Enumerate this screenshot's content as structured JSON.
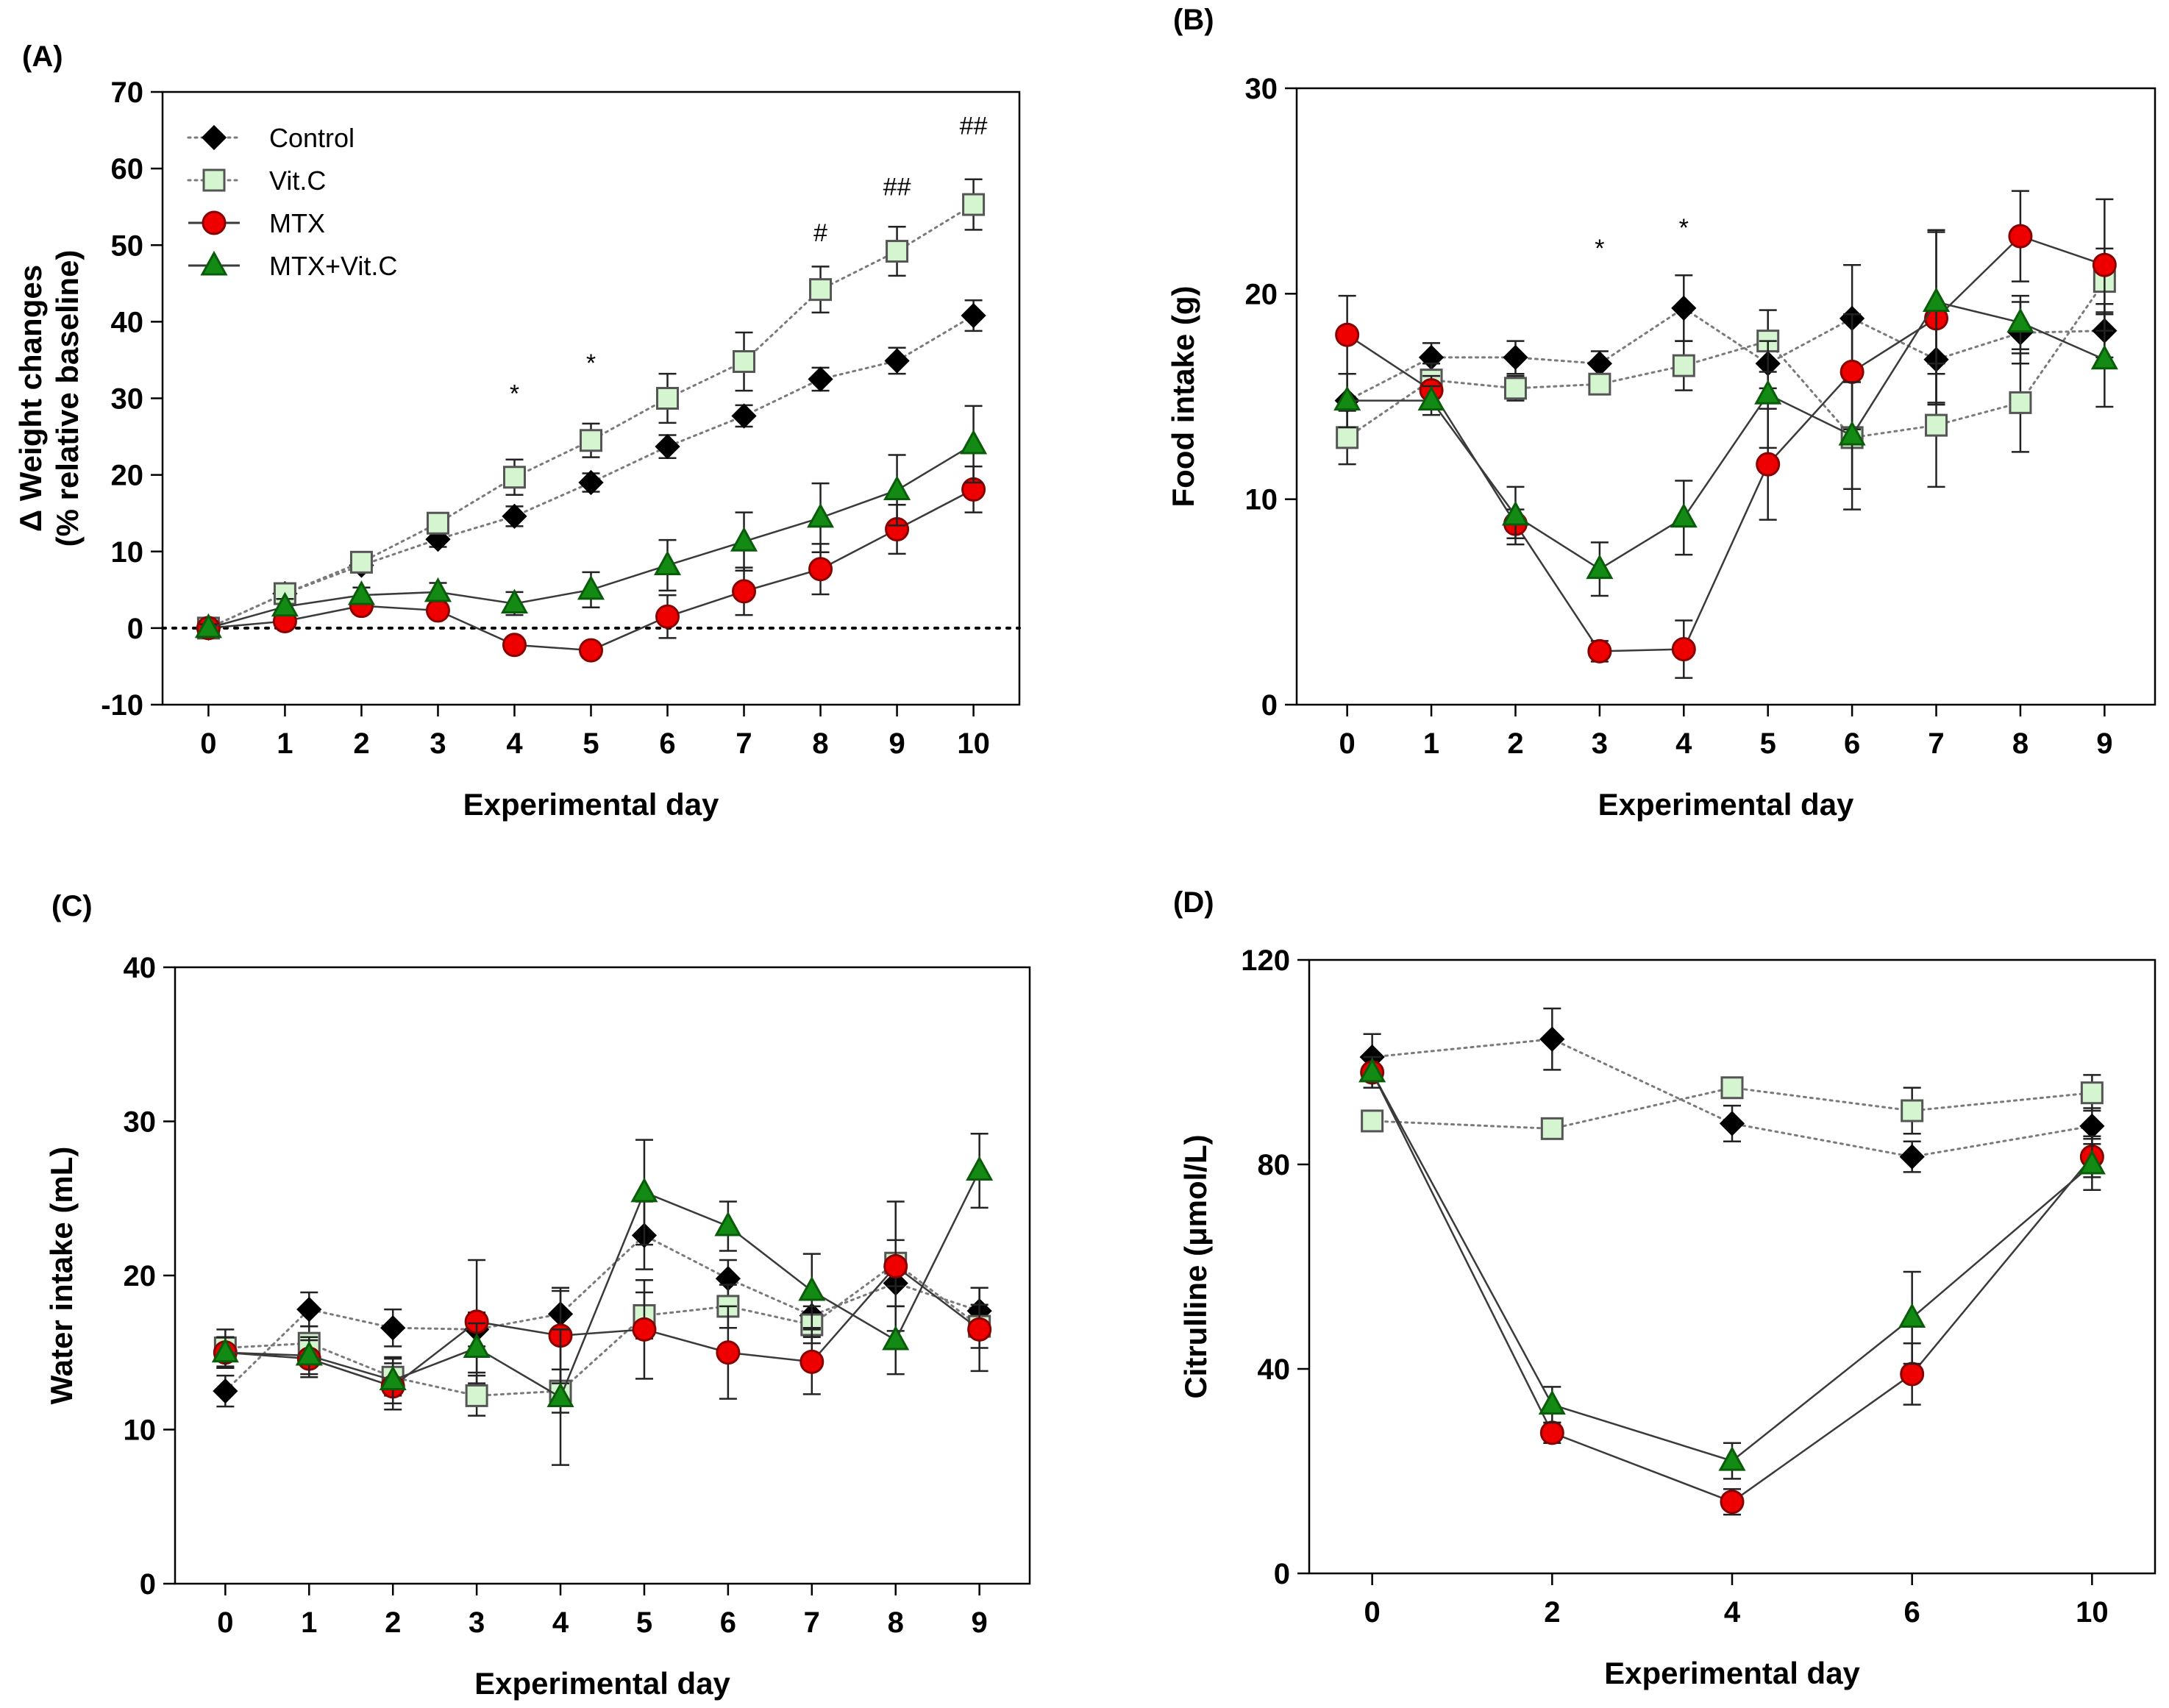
{
  "legend": {
    "entries": [
      {
        "name": "Control",
        "series": "control"
      },
      {
        "name": "Vit.C",
        "series": "vitc"
      },
      {
        "name": "MTX",
        "series": "mtx"
      },
      {
        "name": "MTX+Vit.C",
        "series": "mtxvitc"
      }
    ]
  },
  "styles": {
    "control": {
      "marker": "diamond",
      "fill": "#000000",
      "stroke": "#000000",
      "line": "dotted"
    },
    "vitc": {
      "marker": "square",
      "fill": "#d4f5d0",
      "stroke": "#555555",
      "line": "dotted"
    },
    "mtx": {
      "marker": "circle",
      "fill": "#ee0000",
      "stroke": "#880000",
      "line": "solid"
    },
    "mtxvitc": {
      "marker": "triangle",
      "fill": "#138a13",
      "stroke": "#0a5c0a",
      "line": "solid"
    }
  },
  "chart_data": [
    {
      "id": "A",
      "panel_label": "(A)",
      "type": "line",
      "xlabel": "Experimental day",
      "ylabel": [
        "Δ Weight changes",
        "(% relative baseline)"
      ],
      "xlim": [
        -0.6,
        10.6
      ],
      "ylim": [
        -10,
        70
      ],
      "yticks": [
        -10,
        0,
        10,
        20,
        30,
        40,
        50,
        60,
        70
      ],
      "ytick_labels": [
        "-10",
        "0",
        "10",
        "20",
        "30",
        "40",
        "50",
        "60",
        "70"
      ],
      "xticks": [
        0,
        1,
        2,
        3,
        4,
        5,
        6,
        7,
        8,
        9,
        10
      ],
      "xtick_labels": [
        "0",
        "1",
        "2",
        "3",
        "4",
        "5",
        "6",
        "7",
        "8",
        "9",
        "10"
      ],
      "baseline": 0,
      "show_legend": true,
      "series": [
        {
          "key": "control",
          "name": "Control",
          "x": [
            0,
            1,
            2,
            3,
            4,
            5,
            6,
            7,
            8,
            9,
            10
          ],
          "y": [
            0,
            4.5,
            8.2,
            11.6,
            14.6,
            19,
            23.7,
            27.7,
            32.5,
            34.9,
            40.8
          ],
          "err": [
            0.5,
            0.8,
            0.8,
            1,
            1.3,
            1.2,
            1.5,
            1.4,
            1.5,
            1.7,
            2
          ]
        },
        {
          "key": "vitc",
          "name": "Vit.C",
          "x": [
            0,
            1,
            2,
            3,
            4,
            5,
            6,
            7,
            8,
            9,
            10
          ],
          "y": [
            0,
            4.5,
            8.6,
            13.7,
            19.7,
            24.5,
            30,
            34.8,
            44.2,
            49.2,
            55.3
          ],
          "err": [
            0.5,
            1,
            1,
            1.2,
            2.3,
            2.2,
            3.2,
            3.8,
            3,
            3.2,
            3.3
          ]
        },
        {
          "key": "mtx",
          "name": "MTX",
          "x": [
            0,
            1,
            2,
            3,
            4,
            5,
            6,
            7,
            8,
            9,
            10
          ],
          "y": [
            0,
            0.9,
            2.9,
            2.3,
            -2.2,
            -2.9,
            1.5,
            4.8,
            7.7,
            12.9,
            18.1
          ],
          "err": [
            0.5,
            0.8,
            1,
            1,
            0.8,
            1,
            2.8,
            3.1,
            3.3,
            3.2,
            3
          ]
        },
        {
          "key": "mtxvitc",
          "name": "MTX+Vit.C",
          "x": [
            0,
            1,
            2,
            3,
            4,
            5,
            6,
            7,
            8,
            9,
            10
          ],
          "y": [
            0,
            2.8,
            4.3,
            4.7,
            3.2,
            5,
            8.2,
            11.3,
            14.4,
            18,
            24
          ],
          "err": [
            0.5,
            1,
            1,
            1.2,
            1.5,
            2.3,
            3.3,
            3.8,
            4.5,
            4.6,
            5
          ]
        }
      ],
      "annotations": [
        {
          "x": 4,
          "y": 29.5,
          "text": "*"
        },
        {
          "x": 5,
          "y": 33.5,
          "text": "*"
        },
        {
          "x": 8,
          "y": 50.5,
          "text": "#"
        },
        {
          "x": 9,
          "y": 56.5,
          "text": "##"
        },
        {
          "x": 10,
          "y": 64.5,
          "text": "##"
        }
      ]
    },
    {
      "id": "B",
      "panel_label": "(B)",
      "type": "line",
      "xlabel": "Experimental day",
      "ylabel": [
        "Food intake (g)"
      ],
      "xlim": [
        -0.6,
        9.6
      ],
      "ylim": [
        0,
        30
      ],
      "yticks": [
        0,
        10,
        20,
        30
      ],
      "ytick_labels": [
        "0",
        "10",
        "20",
        "30"
      ],
      "xticks": [
        0,
        1,
        2,
        3,
        4,
        5,
        6,
        7,
        8,
        9
      ],
      "xtick_labels": [
        "0",
        "1",
        "2",
        "3",
        "4",
        "5",
        "6",
        "7",
        "8",
        "9"
      ],
      "show_legend": false,
      "series": [
        {
          "key": "control",
          "name": "Control",
          "x": [
            0,
            1,
            2,
            3,
            4,
            5,
            6,
            7,
            8,
            9
          ],
          "y": [
            14.8,
            16.9,
            16.9,
            16.6,
            19.3,
            16.6,
            18.8,
            16.8,
            18.1,
            18.2
          ],
          "err": [
            1.3,
            0.7,
            0.8,
            0.6,
            1.6,
            1.2,
            2.6,
            2.1,
            1.5,
            1.3
          ]
        },
        {
          "key": "vitc",
          "name": "Vit.C",
          "x": [
            0,
            1,
            2,
            3,
            4,
            5,
            6,
            7,
            8,
            9
          ],
          "y": [
            13,
            15.8,
            15.4,
            15.6,
            16.5,
            17.7,
            13,
            13.6,
            14.7,
            20.6
          ],
          "err": [
            1.3,
            0.8,
            0.6,
            0.5,
            1.2,
            1.5,
            3.5,
            3,
            2.4,
            1.6
          ]
        },
        {
          "key": "mtx",
          "name": "MTX",
          "x": [
            0,
            1,
            2,
            3,
            4,
            5,
            6,
            7,
            8,
            9
          ],
          "y": [
            18,
            15.3,
            8.8,
            2.6,
            2.7,
            11.7,
            16.2,
            18.8,
            22.8,
            21.4
          ],
          "err": [
            1.9,
            0.7,
            0.7,
            0.5,
            1.4,
            2.7,
            2.8,
            4.2,
            2.2,
            3.2
          ]
        },
        {
          "key": "mtxvitc",
          "name": "MTX+Vit.C",
          "x": [
            0,
            1,
            2,
            3,
            4,
            5,
            6,
            7,
            8,
            9
          ],
          "y": [
            14.8,
            14.8,
            9.2,
            6.6,
            9.1,
            15.1,
            13.1,
            19.6,
            18.6,
            16.8
          ],
          "err": [
            1.3,
            0.7,
            1.4,
            1.3,
            1.8,
            2.6,
            2.6,
            3.5,
            1.3,
            2.3
          ]
        }
      ],
      "annotations": [
        {
          "x": 3,
          "y": 21.8,
          "text": "*"
        },
        {
          "x": 4,
          "y": 22.8,
          "text": "*"
        }
      ]
    },
    {
      "id": "C",
      "panel_label": "(C)",
      "type": "line",
      "xlabel": "Experimental day",
      "ylabel": [
        "Water intake (mL)"
      ],
      "xlim": [
        -0.6,
        9.6
      ],
      "ylim": [
        0,
        40
      ],
      "yticks": [
        0,
        10,
        20,
        30,
        40
      ],
      "ytick_labels": [
        "0",
        "10",
        "20",
        "30",
        "40"
      ],
      "xticks": [
        0,
        1,
        2,
        3,
        4,
        5,
        6,
        7,
        8,
        9
      ],
      "xtick_labels": [
        "0",
        "1",
        "2",
        "3",
        "4",
        "5",
        "6",
        "7",
        "8",
        "9"
      ],
      "show_legend": false,
      "series": [
        {
          "key": "control",
          "name": "Control",
          "x": [
            0,
            1,
            2,
            3,
            4,
            5,
            6,
            7,
            8,
            9
          ],
          "y": [
            12.5,
            17.8,
            16.6,
            16.5,
            17.5,
            22.6,
            19.8,
            17.4,
            19.5,
            17.7
          ],
          "err": [
            1,
            1.1,
            1.2,
            1.1,
            1.5,
            2.2,
            1.2,
            1.4,
            1.5,
            1.5
          ]
        },
        {
          "key": "vitc",
          "name": "Vit.C",
          "x": [
            0,
            1,
            2,
            3,
            4,
            5,
            6,
            7,
            8,
            9
          ],
          "y": [
            15.3,
            15.6,
            13.4,
            12.2,
            12.5,
            17.4,
            18,
            16.8,
            20.8,
            16.7
          ],
          "err": [
            1.2,
            1.1,
            1.2,
            1.3,
            1.4,
            1.5,
            1.4,
            1.2,
            1.5,
            1.4
          ]
        },
        {
          "key": "mtx",
          "name": "MTX",
          "x": [
            0,
            1,
            2,
            3,
            4,
            5,
            6,
            7,
            8,
            9
          ],
          "y": [
            15,
            14.6,
            12.8,
            17,
            16.1,
            16.5,
            15,
            14.4,
            20.6,
            16.5
          ],
          "err": [
            1,
            1.2,
            1.5,
            4,
            3.1,
            3.2,
            3,
            2.1,
            4.2,
            2.7
          ]
        },
        {
          "key": "mtxvitc",
          "name": "MTX+Vit.C",
          "x": [
            0,
            1,
            2,
            3,
            4,
            5,
            6,
            7,
            8,
            9
          ],
          "y": [
            15,
            14.8,
            13.2,
            15.3,
            12.1,
            25.4,
            23.2,
            19,
            15.8,
            26.8
          ],
          "err": [
            1,
            1.2,
            1.5,
            1.6,
            4.4,
            3.4,
            1.6,
            2.4,
            2.2,
            2.4
          ]
        }
      ],
      "annotations": []
    },
    {
      "id": "D",
      "panel_label": "(D)",
      "type": "line",
      "xlabel": "Experimental day",
      "ylabel": [
        "Citrulline (μmol/L)"
      ],
      "xlim": [
        -0.35,
        4.35
      ],
      "ylim": [
        0,
        120
      ],
      "yticks": [
        0,
        40,
        80,
        120
      ],
      "ytick_labels": [
        "0",
        "40",
        "80",
        "120"
      ],
      "xticks": [
        0,
        1,
        2,
        3,
        4
      ],
      "xtick_labels": [
        "0",
        "2",
        "4",
        "6",
        "10"
      ],
      "show_legend": false,
      "series": [
        {
          "key": "control",
          "name": "Control",
          "x": [
            0,
            1,
            2,
            3,
            4
          ],
          "y": [
            101,
            104.5,
            88,
            81.5,
            87.5
          ],
          "err": [
            4.5,
            6,
            3.5,
            3,
            3.5
          ]
        },
        {
          "key": "vitc",
          "name": "Vit.C",
          "x": [
            0,
            1,
            2,
            3,
            4
          ],
          "y": [
            88.5,
            87,
            95,
            90.5,
            94
          ],
          "err": [
            2,
            2,
            2,
            4.5,
            3.5
          ]
        },
        {
          "key": "mtx",
          "name": "MTX",
          "x": [
            0,
            1,
            2,
            3,
            4
          ],
          "y": [
            98,
            27.5,
            14,
            39,
            81.5
          ],
          "err": [
            3,
            2,
            2.5,
            6,
            4
          ]
        },
        {
          "key": "mtxvitc",
          "name": "MTX+Vit.C",
          "x": [
            0,
            1,
            2,
            3,
            4
          ],
          "y": [
            98,
            33,
            22,
            50,
            80
          ],
          "err": [
            3,
            3.5,
            3.5,
            9,
            5
          ]
        }
      ],
      "annotations": []
    }
  ]
}
